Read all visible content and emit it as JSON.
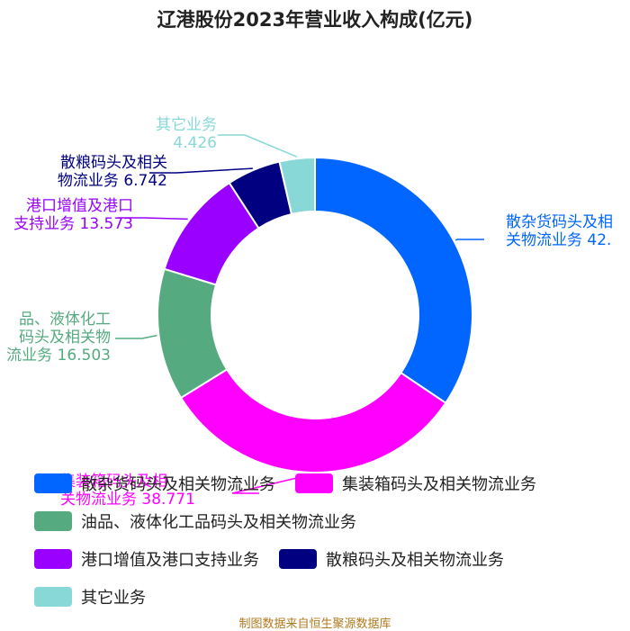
{
  "chart_data": {
    "type": "pie",
    "style": "donut",
    "title": "辽港股份2023年营业收入构成(亿元)",
    "slices": [
      {
        "label": "散杂货码头及相关物流业务",
        "value": 42.0,
        "value_text": "42.",
        "label_lines": [
          "散杂货码头及相",
          "关物流业务 42."
        ],
        "color": "#0066ff"
      },
      {
        "label": "集装箱码头及相关物流业务",
        "value": 38.771,
        "value_text": "38.771",
        "label_lines": [
          "集装箱码头及相",
          "关物流业务 38.771"
        ],
        "color": "#ff00ff"
      },
      {
        "label": "油品、液体化工品码头及相关物流业务",
        "value": 16.503,
        "value_text": "16.503",
        "label_lines": [
          "品、液体化工",
          "码头及相关物",
          "流业务 16.503"
        ],
        "color": "#55aa7f"
      },
      {
        "label": "港口增值及港口支持业务",
        "value": 13.573,
        "value_text": "13.573",
        "label_lines": [
          "港口增值及港口",
          "支持业务 13.573"
        ],
        "color": "#9900ff"
      },
      {
        "label": "散粮码头及相关物流业务",
        "value": 6.742,
        "value_text": "6.742",
        "label_lines": [
          "散粮码头及相关",
          "物流业务 6.742"
        ],
        "color": "#000080"
      },
      {
        "label": "其它业务",
        "value": 4.426,
        "value_text": "4.426",
        "label_lines": [
          "其它业务",
          "4.426"
        ],
        "color": "#88d8d8"
      }
    ],
    "legend": {
      "placement": "bottom",
      "rows": [
        [
          "散杂货码头及相关物流业务",
          "集装箱码头及相关物流业务"
        ],
        [
          "油品、液体化工品码头及相关物流业务"
        ],
        [
          "港口增值及港口支持业务",
          "散粮码头及相关物流业务"
        ],
        [
          "其它业务"
        ]
      ]
    }
  },
  "source_note": "制图数据来自恒生聚源数据库"
}
